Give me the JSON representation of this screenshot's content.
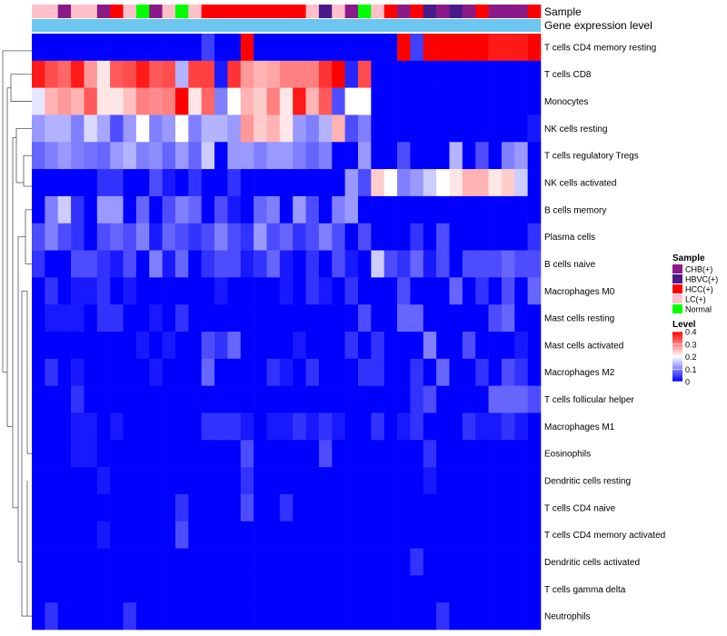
{
  "chart_data": {
    "type": "heatmap",
    "annotation_labels": [
      "Sample",
      "Gene expression level"
    ],
    "sample_groups": [
      "LC(+)",
      "LC(+)",
      "CHB(+)",
      "LC(+)",
      "LC(+)",
      "CHB(+)",
      "HCC(+)",
      "LC(+)",
      "Normal",
      "CHB(+)",
      "LC(+)",
      "Normal",
      "LC(+)",
      "HCC(+)",
      "HCC(+)",
      "HCC(+)",
      "HCC(+)",
      "HCC(+)",
      "HCC(+)",
      "HCC(+)",
      "HCC(+)",
      "LC(+)",
      "HBVC(+)",
      "LC(+)",
      "CHB(+)",
      "Normal",
      "LC(+)",
      "HCC(+)",
      "CHB(+)",
      "HCC(+)",
      "HBVC(+)",
      "CHB(+)",
      "HBVC(+)",
      "CHB(+)",
      "HCC(+)",
      "CHB(+)",
      "CHB(+)",
      "CHB(+)",
      "HCC(+)"
    ],
    "rows": [
      "T cells CD4 memory resting",
      "T cells CD8",
      "Monocytes",
      "NK cells resting",
      "T cells regulatory  Tregs",
      "NK cells activated",
      "B cells memory",
      "Plasma cells",
      "B cells naive",
      "Macrophages M0",
      "Mast cells resting",
      "Mast cells activated",
      "Macrophages M2",
      "T cells follicular helper",
      "Macrophages M1",
      "Eosinophils",
      "Dendritic cells resting",
      "T cells CD4 naive",
      "T cells CD4 memory activated",
      "Dendritic cells activated",
      "T cells gamma delta",
      "Neutrophils"
    ],
    "values": [
      [
        0.0,
        0.0,
        0.0,
        0.0,
        0.0,
        0.0,
        0.0,
        0.0,
        0.0,
        0.0,
        0.0,
        0.0,
        0.0,
        0.05,
        0.0,
        0.0,
        0.4,
        0.0,
        0.0,
        0.0,
        0.0,
        0.0,
        0.0,
        0.0,
        0.0,
        0.0,
        0.0,
        0.0,
        0.4,
        0.05,
        0.4,
        0.4,
        0.4,
        0.4,
        0.4,
        0.38,
        0.38,
        0.38,
        0.4
      ],
      [
        0.38,
        0.34,
        0.32,
        0.38,
        0.28,
        0.22,
        0.33,
        0.34,
        0.38,
        0.33,
        0.34,
        0.14,
        0.35,
        0.35,
        0.02,
        0.36,
        0.28,
        0.26,
        0.27,
        0.3,
        0.3,
        0.3,
        0.36,
        0.4,
        0.03,
        0.34,
        0.0,
        0.0,
        0.0,
        0.0,
        0.0,
        0.0,
        0.0,
        0.0,
        0.0,
        0.0,
        0.0,
        0.0,
        0.0
      ],
      [
        0.18,
        0.26,
        0.28,
        0.26,
        0.33,
        0.22,
        0.22,
        0.25,
        0.3,
        0.29,
        0.3,
        0.4,
        0.22,
        0.32,
        0.1,
        0.2,
        0.26,
        0.24,
        0.3,
        0.22,
        0.38,
        0.26,
        0.33,
        0.06,
        0.2,
        0.2,
        0.0,
        0.0,
        0.0,
        0.0,
        0.0,
        0.0,
        0.0,
        0.0,
        0.0,
        0.0,
        0.0,
        0.0,
        0.0
      ],
      [
        0.12,
        0.14,
        0.14,
        0.1,
        0.17,
        0.13,
        0.06,
        0.12,
        0.2,
        0.1,
        0.12,
        0.2,
        0.1,
        0.14,
        0.14,
        0.12,
        0.28,
        0.24,
        0.26,
        0.22,
        0.12,
        0.1,
        0.14,
        0.26,
        0.06,
        0.1,
        0.0,
        0.0,
        0.0,
        0.0,
        0.0,
        0.0,
        0.0,
        0.0,
        0.0,
        0.0,
        0.0,
        0.0,
        0.02
      ],
      [
        0.08,
        0.1,
        0.12,
        0.1,
        0.09,
        0.08,
        0.12,
        0.14,
        0.1,
        0.11,
        0.08,
        0.12,
        0.08,
        0.16,
        0.0,
        0.12,
        0.12,
        0.1,
        0.12,
        0.12,
        0.1,
        0.08,
        0.1,
        0.0,
        0.0,
        0.12,
        0.0,
        0.0,
        0.06,
        0.0,
        0.0,
        0.0,
        0.14,
        0.0,
        0.06,
        0.0,
        0.1,
        0.12,
        0.0
      ],
      [
        0.0,
        0.0,
        0.0,
        0.0,
        0.0,
        0.04,
        0.04,
        0.0,
        0.0,
        0.06,
        0.02,
        0.0,
        0.04,
        0.0,
        0.0,
        0.04,
        0.0,
        0.0,
        0.0,
        0.0,
        0.0,
        0.0,
        0.0,
        0.0,
        0.12,
        0.06,
        0.24,
        0.2,
        0.1,
        0.12,
        0.16,
        0.2,
        0.22,
        0.26,
        0.26,
        0.22,
        0.24,
        0.16,
        0.0
      ],
      [
        0.0,
        0.1,
        0.16,
        0.04,
        0.0,
        0.12,
        0.12,
        0.0,
        0.08,
        0.0,
        0.06,
        0.1,
        0.08,
        0.0,
        0.06,
        0.02,
        0.0,
        0.08,
        0.1,
        0.0,
        0.12,
        0.06,
        0.0,
        0.1,
        0.12,
        0.0,
        0.0,
        0.0,
        0.0,
        0.0,
        0.0,
        0.0,
        0.0,
        0.0,
        0.0,
        0.0,
        0.0,
        0.0,
        0.0
      ],
      [
        0.06,
        0.1,
        0.06,
        0.04,
        0.0,
        0.06,
        0.08,
        0.06,
        0.1,
        0.02,
        0.08,
        0.06,
        0.04,
        0.06,
        0.1,
        0.06,
        0.04,
        0.12,
        0.06,
        0.08,
        0.04,
        0.06,
        0.1,
        0.06,
        0.0,
        0.06,
        0.0,
        0.0,
        0.0,
        0.04,
        0.0,
        0.06,
        0.0,
        0.0,
        0.0,
        0.0,
        0.0,
        0.0,
        0.04
      ],
      [
        0.04,
        0.0,
        0.0,
        0.06,
        0.06,
        0.04,
        0.02,
        0.06,
        0.0,
        0.1,
        0.02,
        0.08,
        0.0,
        0.04,
        0.06,
        0.06,
        0.02,
        0.04,
        0.08,
        0.02,
        0.0,
        0.04,
        0.0,
        0.06,
        0.02,
        0.0,
        0.16,
        0.06,
        0.04,
        0.08,
        0.02,
        0.06,
        0.0,
        0.06,
        0.06,
        0.06,
        0.08,
        0.06,
        0.06
      ],
      [
        0.0,
        0.04,
        0.0,
        0.02,
        0.02,
        0.04,
        0.0,
        0.02,
        0.0,
        0.0,
        0.0,
        0.0,
        0.0,
        0.0,
        0.02,
        0.0,
        0.0,
        0.0,
        0.0,
        0.02,
        0.0,
        0.04,
        0.02,
        0.0,
        0.04,
        0.0,
        0.0,
        0.0,
        0.06,
        0.0,
        0.0,
        0.0,
        0.08,
        0.0,
        0.04,
        0.0,
        0.06,
        0.0,
        0.08
      ],
      [
        0.0,
        0.02,
        0.02,
        0.02,
        0.0,
        0.04,
        0.04,
        0.0,
        0.0,
        0.02,
        0.0,
        0.04,
        0.0,
        0.0,
        0.0,
        0.0,
        0.0,
        0.0,
        0.0,
        0.0,
        0.0,
        0.0,
        0.0,
        0.0,
        0.0,
        0.06,
        0.0,
        0.0,
        0.08,
        0.08,
        0.0,
        0.0,
        0.0,
        0.0,
        0.0,
        0.06,
        0.08,
        0.0,
        0.0
      ],
      [
        0.0,
        0.0,
        0.0,
        0.0,
        0.0,
        0.0,
        0.0,
        0.0,
        0.02,
        0.0,
        0.02,
        0.0,
        0.0,
        0.06,
        0.04,
        0.08,
        0.0,
        0.0,
        0.0,
        0.0,
        0.02,
        0.0,
        0.0,
        0.0,
        0.04,
        0.0,
        0.04,
        0.0,
        0.0,
        0.0,
        0.1,
        0.0,
        0.0,
        0.06,
        0.0,
        0.0,
        0.0,
        0.02,
        0.0
      ],
      [
        0.0,
        0.04,
        0.0,
        0.02,
        0.0,
        0.0,
        0.0,
        0.0,
        0.0,
        0.02,
        0.0,
        0.0,
        0.0,
        0.08,
        0.0,
        0.0,
        0.0,
        0.0,
        0.04,
        0.02,
        0.0,
        0.04,
        0.0,
        0.0,
        0.0,
        0.04,
        0.04,
        0.0,
        0.0,
        0.04,
        0.0,
        0.08,
        0.0,
        0.0,
        0.04,
        0.0,
        0.06,
        0.04,
        0.0
      ],
      [
        0.0,
        0.0,
        0.0,
        0.04,
        0.0,
        0.0,
        0.0,
        0.0,
        0.0,
        0.0,
        0.0,
        0.0,
        0.0,
        0.0,
        0.0,
        0.0,
        0.0,
        0.0,
        0.0,
        0.0,
        0.0,
        0.0,
        0.0,
        0.0,
        0.0,
        0.0,
        0.0,
        0.0,
        0.0,
        0.04,
        0.06,
        0.0,
        0.0,
        0.0,
        0.0,
        0.08,
        0.08,
        0.08,
        0.06
      ],
      [
        0.0,
        0.0,
        0.0,
        0.02,
        0.02,
        0.0,
        0.02,
        0.0,
        0.0,
        0.0,
        0.0,
        0.0,
        0.0,
        0.04,
        0.04,
        0.04,
        0.02,
        0.0,
        0.02,
        0.02,
        0.04,
        0.02,
        0.04,
        0.02,
        0.0,
        0.0,
        0.04,
        0.0,
        0.02,
        0.04,
        0.0,
        0.0,
        0.0,
        0.04,
        0.02,
        0.02,
        0.04,
        0.02,
        0.0
      ],
      [
        0.0,
        0.0,
        0.0,
        0.02,
        0.02,
        0.0,
        0.0,
        0.0,
        0.0,
        0.0,
        0.0,
        0.0,
        0.0,
        0.0,
        0.0,
        0.0,
        0.06,
        0.0,
        0.0,
        0.0,
        0.0,
        0.0,
        0.06,
        0.0,
        0.0,
        0.0,
        0.0,
        0.0,
        0.0,
        0.0,
        0.04,
        0.0,
        0.0,
        0.0,
        0.0,
        0.0,
        0.0,
        0.0,
        0.0
      ],
      [
        0.0,
        0.0,
        0.0,
        0.0,
        0.0,
        0.02,
        0.0,
        0.0,
        0.0,
        0.0,
        0.0,
        0.0,
        0.0,
        0.0,
        0.0,
        0.0,
        0.04,
        0.0,
        0.0,
        0.0,
        0.0,
        0.0,
        0.0,
        0.0,
        0.0,
        0.0,
        0.0,
        0.0,
        0.0,
        0.0,
        0.02,
        0.0,
        0.0,
        0.0,
        0.0,
        0.0,
        0.0,
        0.0,
        0.0
      ],
      [
        0.0,
        0.0,
        0.0,
        0.0,
        0.0,
        0.0,
        0.0,
        0.0,
        0.0,
        0.0,
        0.0,
        0.04,
        0.0,
        0.0,
        0.0,
        0.0,
        0.06,
        0.0,
        0.0,
        0.04,
        0.0,
        0.0,
        0.0,
        0.0,
        0.0,
        0.0,
        0.0,
        0.0,
        0.0,
        0.0,
        0.0,
        0.0,
        0.0,
        0.0,
        0.0,
        0.0,
        0.0,
        0.0,
        0.0
      ],
      [
        0.0,
        0.0,
        0.0,
        0.0,
        0.0,
        0.02,
        0.0,
        0.0,
        0.0,
        0.0,
        0.0,
        0.06,
        0.0,
        0.0,
        0.0,
        0.0,
        0.0,
        0.0,
        0.0,
        0.0,
        0.0,
        0.0,
        0.0,
        0.0,
        0.0,
        0.0,
        0.0,
        0.0,
        0.0,
        0.0,
        0.0,
        0.0,
        0.0,
        0.0,
        0.0,
        0.0,
        0.0,
        0.0,
        0.0
      ],
      [
        0.0,
        0.0,
        0.0,
        0.0,
        0.0,
        0.0,
        0.0,
        0.0,
        0.0,
        0.0,
        0.0,
        0.0,
        0.0,
        0.0,
        0.0,
        0.0,
        0.0,
        0.0,
        0.0,
        0.0,
        0.0,
        0.0,
        0.0,
        0.0,
        0.0,
        0.0,
        0.0,
        0.0,
        0.0,
        0.04,
        0.0,
        0.0,
        0.0,
        0.0,
        0.0,
        0.0,
        0.0,
        0.0,
        0.0
      ],
      [
        0.0,
        0.0,
        0.0,
        0.0,
        0.0,
        0.0,
        0.0,
        0.0,
        0.0,
        0.0,
        0.0,
        0.0,
        0.0,
        0.0,
        0.0,
        0.0,
        0.0,
        0.0,
        0.0,
        0.0,
        0.0,
        0.0,
        0.0,
        0.0,
        0.0,
        0.0,
        0.0,
        0.0,
        0.0,
        0.0,
        0.0,
        0.0,
        0.0,
        0.0,
        0.0,
        0.0,
        0.0,
        0.0,
        0.0
      ],
      [
        0.0,
        0.04,
        0.0,
        0.0,
        0.0,
        0.0,
        0.0,
        0.04,
        0.0,
        0.0,
        0.0,
        0.0,
        0.0,
        0.0,
        0.0,
        0.0,
        0.0,
        0.0,
        0.0,
        0.0,
        0.0,
        0.0,
        0.0,
        0.0,
        0.0,
        0.0,
        0.0,
        0.0,
        0.0,
        0.0,
        0.0,
        0.04,
        0.0,
        0.0,
        0.0,
        0.0,
        0.0,
        0.0,
        0.0
      ]
    ],
    "legend_sample": {
      "title": "Sample",
      "entries": [
        {
          "label": "CHB(+)",
          "color": "#8B1A89"
        },
        {
          "label": "HBVC(+)",
          "color": "#4B1A8A"
        },
        {
          "label": "HCC(+)",
          "color": "#FF0000"
        },
        {
          "label": "LC(+)",
          "color": "#FFC0CB"
        },
        {
          "label": "Normal",
          "color": "#00FF00"
        }
      ]
    },
    "legend_level": {
      "title": "Level",
      "ticks": [
        "0.4",
        "0.3",
        "0.2",
        "0.1",
        "0"
      ],
      "range": [
        0,
        0.4
      ]
    },
    "colors": {
      "low": "#0000FF",
      "mid": "#FFFFFF",
      "high": "#FF0000",
      "gene_bar": "#6CC6F0"
    }
  }
}
